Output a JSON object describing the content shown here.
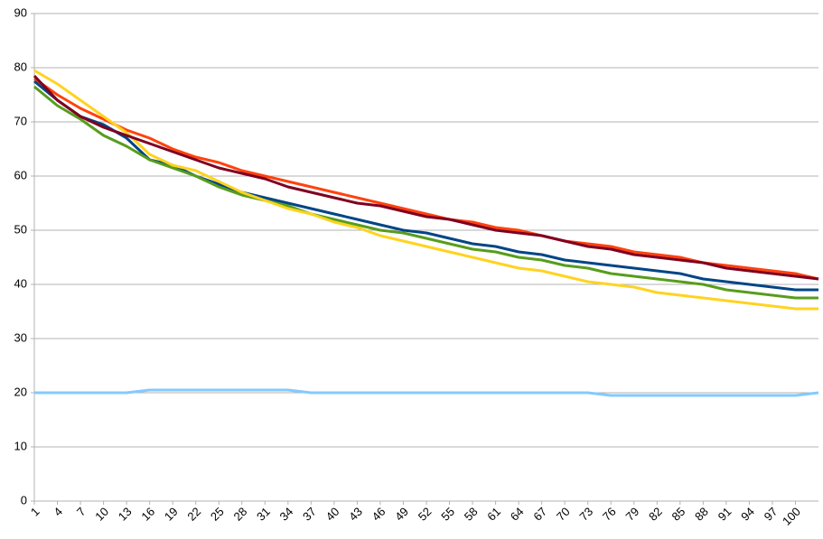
{
  "chart_data": {
    "type": "line",
    "x": [
      1,
      4,
      7,
      10,
      13,
      16,
      19,
      22,
      25,
      28,
      31,
      34,
      37,
      40,
      43,
      46,
      49,
      52,
      55,
      58,
      61,
      64,
      67,
      70,
      73,
      76,
      79,
      82,
      85,
      88,
      91,
      94,
      97,
      100,
      103
    ],
    "xlim": [
      1,
      103
    ],
    "xticks": [
      1,
      4,
      7,
      10,
      13,
      16,
      19,
      22,
      25,
      28,
      31,
      34,
      37,
      40,
      43,
      46,
      49,
      52,
      55,
      58,
      61,
      64,
      67,
      70,
      73,
      76,
      79,
      82,
      85,
      88,
      91,
      94,
      97,
      100
    ],
    "ylim": [
      0,
      90
    ],
    "yticks": [
      0,
      10,
      20,
      30,
      40,
      50,
      60,
      70,
      80,
      90
    ],
    "grid": true,
    "series": [
      {
        "color": "#ff420e",
        "values": [
          78,
          75,
          72.5,
          70.5,
          68.5,
          67,
          65,
          63.5,
          62.5,
          61,
          60,
          59,
          58,
          57,
          56,
          55,
          54,
          53,
          52,
          51.5,
          50.5,
          50,
          49,
          48,
          47.5,
          47,
          46,
          45.5,
          45,
          44,
          43.5,
          43,
          42.5,
          42,
          41
        ]
      },
      {
        "color": "#004586",
        "values": [
          77.5,
          74,
          71,
          69.5,
          67,
          63,
          62,
          60,
          58.5,
          57,
          56,
          55,
          54,
          53,
          52,
          51,
          50,
          49.5,
          48.5,
          47.5,
          47,
          46,
          45.5,
          44.5,
          44,
          43.5,
          43,
          42.5,
          42,
          41,
          40.5,
          40,
          39.5,
          39,
          39
        ]
      },
      {
        "color": "#579d1c",
        "values": [
          76.5,
          73,
          70.5,
          67.5,
          65.5,
          63,
          61.5,
          60,
          58,
          56.5,
          55.5,
          54.5,
          53,
          52,
          51,
          50,
          49.5,
          48.5,
          47.5,
          46.5,
          46,
          45,
          44.5,
          43.5,
          43,
          42,
          41.5,
          41,
          40.5,
          40,
          39,
          38.5,
          38,
          37.5,
          37.5
        ]
      },
      {
        "color": "#ffd320",
        "values": [
          79.5,
          77,
          74,
          71,
          68,
          64,
          62,
          61,
          59,
          57,
          55.5,
          54,
          53,
          51.5,
          50.5,
          49,
          48,
          47,
          46,
          45,
          44,
          43,
          42.5,
          41.5,
          40.5,
          40,
          39.5,
          38.5,
          38,
          37.5,
          37,
          36.5,
          36,
          35.5,
          35.5
        ]
      },
      {
        "color": "#7e0021",
        "values": [
          78.5,
          74,
          71,
          69,
          67.5,
          66,
          64.5,
          63,
          61.5,
          60.5,
          59.5,
          58,
          57,
          56,
          55,
          54.5,
          53.5,
          52.5,
          52,
          51,
          50,
          49.5,
          49,
          48,
          47,
          46.5,
          45.5,
          45,
          44.5,
          44,
          43,
          42.5,
          42,
          41.5,
          41
        ]
      },
      {
        "color": "#83caff",
        "values": [
          20,
          20,
          20,
          20,
          20,
          20.5,
          20.5,
          20.5,
          20.5,
          20.5,
          20.5,
          20.5,
          20,
          20,
          20,
          20,
          20,
          20,
          20,
          20,
          20,
          20,
          20,
          20,
          20,
          19.5,
          19.5,
          19.5,
          19.5,
          19.5,
          19.5,
          19.5,
          19.5,
          19.5,
          20
        ]
      }
    ]
  }
}
